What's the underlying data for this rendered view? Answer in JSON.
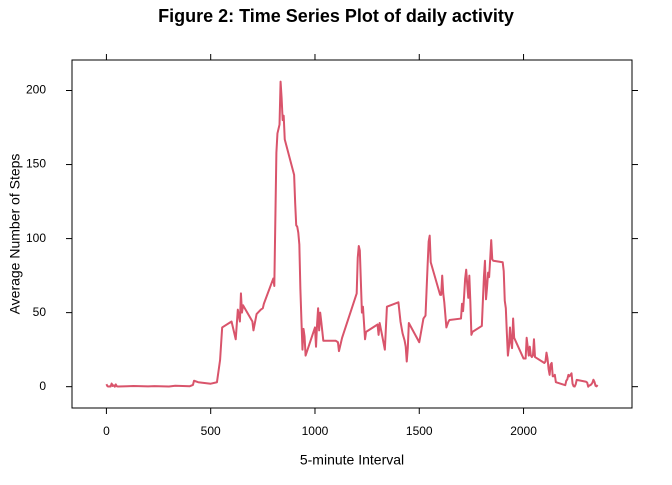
{
  "chart_data": {
    "type": "line",
    "title": "Figure 2: Time Series Plot of daily activity",
    "xlabel": "5-minute Interval",
    "ylabel": "Average Number of Steps",
    "x": [
      0,
      5,
      10,
      15,
      20,
      25,
      30,
      35,
      40,
      45,
      50,
      55,
      100,
      130,
      200,
      230,
      300,
      330,
      400,
      415,
      420,
      440,
      500,
      530,
      545,
      555,
      600,
      620,
      630,
      640,
      645,
      650,
      655,
      700,
      705,
      720,
      740,
      750,
      755,
      800,
      805,
      815,
      820,
      830,
      835,
      840,
      845,
      850,
      855,
      900,
      905,
      910,
      915,
      920,
      925,
      930,
      935,
      940,
      945,
      950,
      955,
      1000,
      1005,
      1010,
      1015,
      1020,
      1025,
      1030,
      1040,
      1100,
      1110,
      1115,
      1130,
      1200,
      1205,
      1210,
      1215,
      1225,
      1230,
      1240,
      1245,
      1300,
      1305,
      1310,
      1320,
      1335,
      1345,
      1400,
      1410,
      1420,
      1430,
      1435,
      1440,
      1445,
      1450,
      1500,
      1520,
      1525,
      1530,
      1535,
      1540,
      1545,
      1550,
      1555,
      1600,
      1605,
      1610,
      1615,
      1620,
      1630,
      1640,
      1645,
      1700,
      1705,
      1710,
      1715,
      1720,
      1725,
      1730,
      1735,
      1740,
      1745,
      1750,
      1755,
      1800,
      1805,
      1810,
      1815,
      1820,
      1825,
      1830,
      1835,
      1840,
      1845,
      1850,
      1855,
      1900,
      1905,
      1910,
      1915,
      1920,
      1925,
      1930,
      1935,
      1940,
      1945,
      1950,
      1955,
      2000,
      2005,
      2010,
      2015,
      2020,
      2025,
      2030,
      2035,
      2040,
      2045,
      2050,
      2055,
      2100,
      2105,
      2110,
      2115,
      2120,
      2125,
      2130,
      2135,
      2140,
      2145,
      2150,
      2155,
      2200,
      2205,
      2210,
      2215,
      2220,
      2225,
      2230,
      2235,
      2240,
      2245,
      2250,
      2255,
      2300,
      2305,
      2310,
      2315,
      2320,
      2325,
      2330,
      2335,
      2340,
      2345,
      2350,
      2355
    ],
    "values": [
      1.7,
      0.3,
      0.1,
      0.2,
      0.1,
      2.1,
      0.5,
      0.9,
      0,
      1.5,
      0.3,
      0.1,
      0.3,
      0.5,
      0.2,
      0.4,
      0.1,
      0.6,
      0.3,
      1.2,
      4,
      3,
      2,
      3,
      18,
      40,
      44,
      32,
      52,
      44,
      63,
      50,
      55,
      44,
      38,
      49,
      52,
      53,
      56,
      73,
      68,
      158,
      171,
      177,
      206,
      195,
      180,
      183,
      167,
      143,
      124,
      109,
      108,
      104,
      96,
      66,
      45,
      25,
      39,
      34,
      21,
      40,
      27,
      42,
      53,
      38,
      50,
      44,
      31,
      31,
      30,
      24,
      33,
      63,
      87,
      95,
      92,
      50,
      54,
      32,
      37,
      42,
      35,
      43,
      36,
      25,
      54,
      57,
      44,
      36,
      31,
      27,
      17,
      26,
      43,
      30,
      46,
      47,
      48,
      65,
      82,
      98,
      102,
      84,
      62,
      62,
      75,
      63,
      57,
      40,
      44,
      45,
      46,
      56,
      51,
      61,
      73,
      79,
      69,
      60,
      75,
      57,
      35,
      37,
      41,
      58,
      74,
      85,
      59,
      67,
      77,
      74,
      86,
      99,
      86,
      85,
      84,
      78,
      58,
      53,
      36,
      21,
      27,
      40,
      30,
      26,
      46,
      33,
      19,
      19,
      19,
      33,
      27,
      21,
      27,
      21,
      20,
      21,
      32,
      20,
      16,
      17,
      23,
      19,
      12,
      8,
      15,
      16,
      7,
      7,
      8,
      3,
      1,
      4,
      5,
      8,
      7,
      8,
      9,
      2,
      0.3,
      0.1,
      1.6,
      4.6,
      3.3,
      2.8,
      0,
      0.8,
      1,
      1.6,
      2.6,
      4.7,
      3.3,
      0.6,
      0.2,
      1.1
    ],
    "color": "#d9546b",
    "xlim": [
      -165,
      2520
    ],
    "xticks": [
      0,
      500,
      1000,
      1500,
      2000
    ],
    "ylim": [
      -14.4,
      220.6
    ],
    "yticks": [
      0,
      50,
      100,
      150,
      200
    ]
  }
}
